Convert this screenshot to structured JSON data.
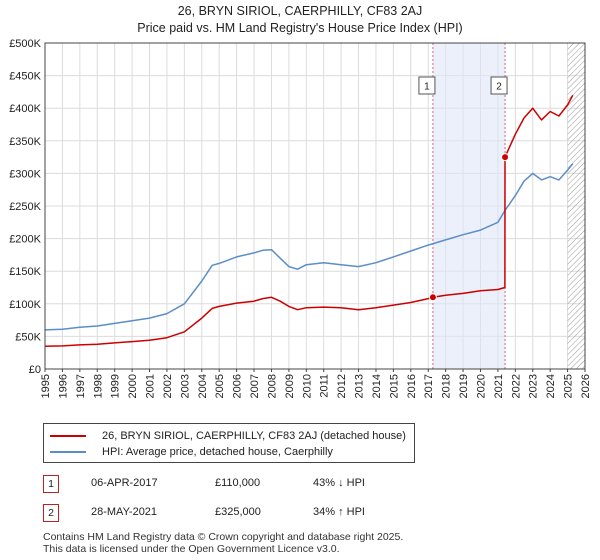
{
  "title_line1": "26, BRYN SIRIOL, CAERPHILLY, CF83 2AJ",
  "title_line2": "Price paid vs. HM Land Registry's House Price Index (HPI)",
  "chart_data": {
    "type": "line",
    "title": "26, BRYN SIRIOL, CAERPHILLY, CF83 2AJ — Price paid vs. HM Land Registry's House Price Index (HPI)",
    "xlim": [
      1995,
      2026
    ],
    "ylim": [
      0,
      500000
    ],
    "x_ticks": [
      1995,
      1996,
      1997,
      1998,
      1999,
      2000,
      2001,
      2002,
      2003,
      2004,
      2005,
      2006,
      2007,
      2008,
      2009,
      2010,
      2011,
      2012,
      2013,
      2014,
      2015,
      2016,
      2017,
      2018,
      2019,
      2020,
      2021,
      2022,
      2023,
      2024,
      2025,
      2026
    ],
    "y_ticks": [
      {
        "value": 0,
        "label": "£0"
      },
      {
        "value": 50000,
        "label": "£50K"
      },
      {
        "value": 100000,
        "label": "£100K"
      },
      {
        "value": 150000,
        "label": "£150K"
      },
      {
        "value": 200000,
        "label": "£200K"
      },
      {
        "value": 250000,
        "label": "£250K"
      },
      {
        "value": 300000,
        "label": "£300K"
      },
      {
        "value": 350000,
        "label": "£350K"
      },
      {
        "value": 400000,
        "label": "£400K"
      },
      {
        "value": 450000,
        "label": "£450K"
      },
      {
        "value": 500000,
        "label": "£500K"
      }
    ],
    "grid": true,
    "shaded_range": [
      2017.27,
      2021.41
    ],
    "hatched_from": 2025.0,
    "series": [
      {
        "name": "26, BRYN SIRIOL, CAERPHILLY, CF83 2AJ (detached house)",
        "color": "#cc0000",
        "x": [
          1995,
          1996,
          1997,
          1998,
          1999,
          2000,
          2001,
          2002,
          2003,
          2004,
          2004.6,
          2005,
          2006,
          2007,
          2007.5,
          2008,
          2008.5,
          2009,
          2009.5,
          2010,
          2011,
          2012,
          2013,
          2014,
          2015,
          2016,
          2017,
          2017.27,
          2018,
          2019,
          2020,
          2021,
          2021.4,
          2021.41,
          2022,
          2022.5,
          2023,
          2023.5,
          2024,
          2024.5,
          2025,
          2025.3
        ],
        "y": [
          35000,
          35500,
          37000,
          38000,
          40000,
          42000,
          44000,
          48000,
          57000,
          78000,
          93000,
          96000,
          101000,
          104000,
          108000,
          110000,
          104000,
          96000,
          91000,
          94000,
          95000,
          94000,
          91000,
          94000,
          98000,
          102000,
          108000,
          110000,
          113000,
          116000,
          120000,
          122000,
          125000,
          325000,
          360000,
          385000,
          400000,
          382000,
          395000,
          388000,
          405000,
          420000
        ]
      },
      {
        "name": "HPI: Average price, detached house, Caerphilly",
        "color": "#5b8ec9",
        "x": [
          1995,
          1996,
          1997,
          1998,
          1999,
          2000,
          2001,
          2002,
          2003,
          2004,
          2004.6,
          2005,
          2006,
          2007,
          2007.5,
          2008,
          2008.5,
          2009,
          2009.5,
          2010,
          2011,
          2012,
          2013,
          2014,
          2015,
          2016,
          2017,
          2018,
          2019,
          2020,
          2021,
          2021.4,
          2022,
          2022.5,
          2023,
          2023.5,
          2024,
          2024.5,
          2025,
          2025.3
        ],
        "y": [
          60000,
          61000,
          64000,
          66000,
          70000,
          74000,
          78000,
          85000,
          100000,
          135000,
          159000,
          162000,
          172000,
          178000,
          182000,
          183000,
          170000,
          157000,
          153000,
          160000,
          163000,
          160000,
          157000,
          163000,
          172000,
          181000,
          190000,
          198000,
          206000,
          213000,
          225000,
          243000,
          266000,
          288000,
          300000,
          290000,
          295000,
          290000,
          305000,
          315000
        ]
      }
    ],
    "points": [
      {
        "label": "1",
        "x": 2017.27,
        "y": 110000
      },
      {
        "label": "2",
        "x": 2021.41,
        "y": 325000
      }
    ]
  },
  "legend": {
    "series1": "26, BRYN SIRIOL, CAERPHILLY, CF83 2AJ (detached house)",
    "series2": "HPI: Average price, detached house, Caerphilly"
  },
  "sales": [
    {
      "num": "1",
      "date": "06-APR-2017",
      "price": "£110,000",
      "hpi": "43% ↓ HPI"
    },
    {
      "num": "2",
      "date": "28-MAY-2021",
      "price": "£325,000",
      "hpi": "34% ↑ HPI"
    }
  ],
  "footer_line1": "Contains HM Land Registry data © Crown copyright and database right 2025.",
  "footer_line2": "This data is licensed under the Open Government Licence v3.0."
}
